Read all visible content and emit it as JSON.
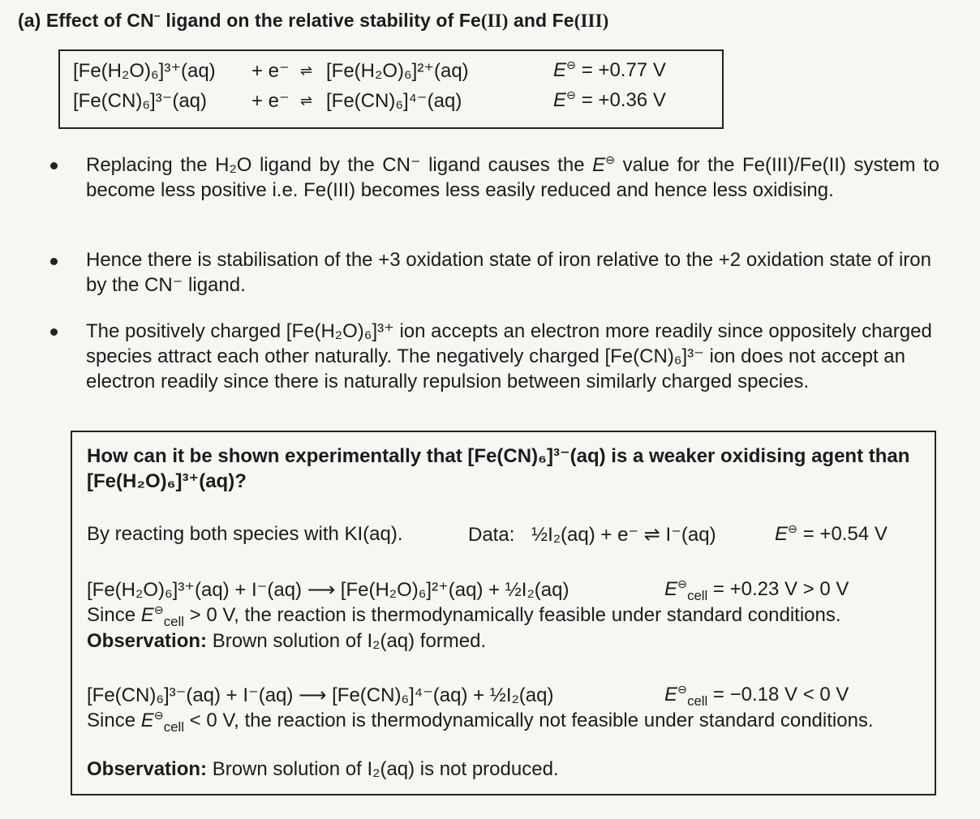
{
  "heading": {
    "prefix": "(a)  Effect of CN",
    "sup": "−",
    "mid": " ligand on the relative stability of Fe",
    "ox1": "(II)",
    "and": " and Fe",
    "ox2": "(III)"
  },
  "equations": [
    {
      "lhs": "[Fe(H₂O)₆]³⁺(aq)",
      "elec": "+  e⁻",
      "arrow": "⇌",
      "rhs": "[Fe(H₂O)₆]²⁺(aq)",
      "e_symbol": "E",
      "e_sup": "⊖",
      "e_value": " =  +0.77 V"
    },
    {
      "lhs": "[Fe(CN)₆]³⁻(aq)",
      "elec": "+  e⁻",
      "arrow": "⇌",
      "rhs": "[Fe(CN)₆]⁴⁻(aq)",
      "e_symbol": "E",
      "e_sup": "⊖",
      "e_value": " =  +0.36 V"
    }
  ],
  "bullets": [
    {
      "text_a": "Replacing the H₂O ligand by the CN⁻ ligand causes the ",
      "e": "E",
      "e_sup": "⊖",
      "text_b": " value for the Fe(III)/Fe(II) system to become less positive i.e. Fe(III) becomes less easily reduced and hence less oxidising."
    },
    {
      "text": "Hence there is stabilisation of the +3 oxidation state of iron relative to the +2 oxidation state of iron by the CN⁻ ligand."
    },
    {
      "text": "The positively charged [Fe(H₂O)₆]³⁺ ion accepts an electron more readily since oppositely charged species attract each other naturally. The negatively charged [Fe(CN)₆]³⁻ ion does not accept an electron readily since there is naturally repulsion between similarly charged species."
    }
  ],
  "question": {
    "title": "How can it be shown experimentally that [Fe(CN)₆]³⁻(aq) is a weaker oxidising agent than [Fe(H₂O)₆]³⁺(aq)?",
    "answer_intro": "By reacting both species with KI(aq).",
    "data_label": "Data:",
    "data_eq": "½I₂(aq) + e⁻ ⇌ I⁻(aq)",
    "data_e": "E",
    "data_e_sup": "⊖",
    "data_e_value": " =  +0.54 V",
    "r1_eq": "[Fe(H₂O)₆]³⁺(aq) + I⁻(aq) ⟶ [Fe(H₂O)₆]²⁺(aq) + ½I₂(aq)",
    "r1_ecell": "E",
    "r1_sup": "⊖",
    "r1_sub": "cell",
    "r1_value": " = +0.23 V > 0 V",
    "r1_since_a": "Since ",
    "r1_since_e": "E",
    "r1_since_sup": "⊖",
    "r1_since_sub": "cell",
    "r1_since_b": " > 0 V, the reaction is thermodynamically feasible under standard conditions.",
    "obs_label": "Observation:",
    "r1_obs": " Brown solution of I₂(aq) formed.",
    "r2_eq": "[Fe(CN)₆]³⁻(aq) + I⁻(aq) ⟶ [Fe(CN)₆]⁴⁻(aq) + ½I₂(aq)",
    "r2_ecell": "E",
    "r2_sup": "⊖",
    "r2_sub": "cell",
    "r2_value": " = −0.18 V < 0 V",
    "r2_since_a": "Since ",
    "r2_since_e": "E",
    "r2_since_sup": "⊖",
    "r2_since_sub": "cell",
    "r2_since_b": " < 0 V, the reaction is thermodynamically not feasible under standard conditions.",
    "r2_obs": " Brown solution of I₂(aq) is not produced."
  }
}
